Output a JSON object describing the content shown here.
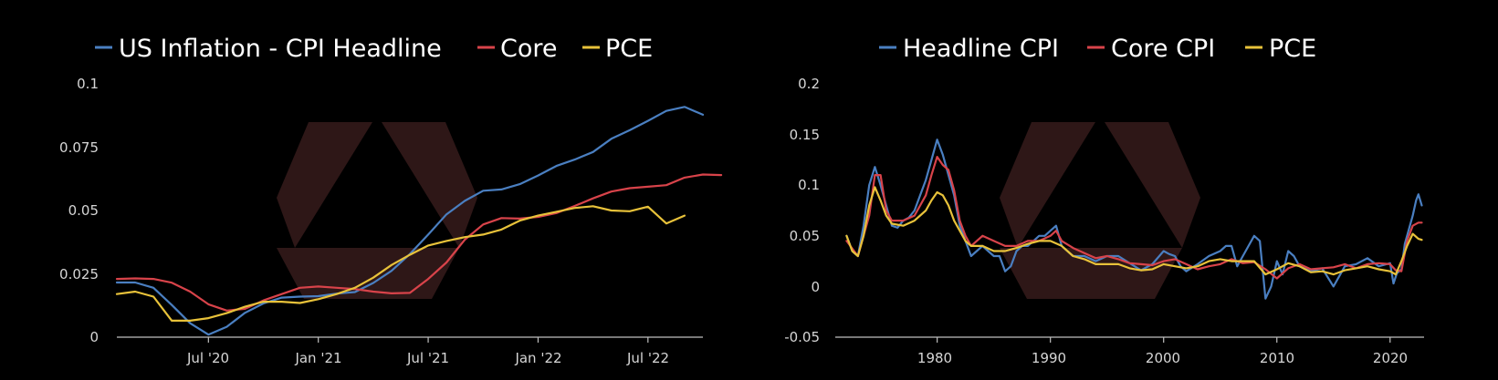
{
  "colors": {
    "background": "#000000",
    "headline": "#4a7fc1",
    "core": "#d8434a",
    "pce": "#e8c23a",
    "axis": "#bfbfbf",
    "text": "#ffffff",
    "watermark": "#2e1717"
  },
  "chart_data": [
    {
      "type": "line",
      "legend": [
        "US Inflation - CPI Headline",
        "Core",
        "PCE"
      ],
      "legend_placement": "top",
      "x_tick_labels": [
        "Jul '20",
        "Jan '21",
        "Jul '21",
        "Jan '22",
        "Jul '22"
      ],
      "y_tick_labels": [
        "0",
        "0.025",
        "0.05",
        "0.075",
        "0.1"
      ],
      "ylim": [
        0,
        0.1
      ],
      "y_ticks": [
        0,
        0.025,
        0.05,
        0.075,
        0.1
      ],
      "xlim": [
        "2020-02",
        "2022-10"
      ],
      "x_ticks": [
        "2020-07",
        "2021-01",
        "2021-07",
        "2022-01",
        "2022-07"
      ],
      "grid": false,
      "series": [
        {
          "name": "US Inflation - CPI Headline",
          "color_key": "headline",
          "x": [
            "2020-02",
            "2020-03",
            "2020-04",
            "2020-05",
            "2020-06",
            "2020-07",
            "2020-08",
            "2020-09",
            "2020-10",
            "2020-11",
            "2020-12",
            "2021-01",
            "2021-02",
            "2021-03",
            "2021-04",
            "2021-05",
            "2021-06",
            "2021-07",
            "2021-08",
            "2021-09",
            "2021-10",
            "2021-11",
            "2021-12",
            "2022-01",
            "2022-02",
            "2022-03",
            "2022-04",
            "2022-05",
            "2022-06",
            "2022-07",
            "2022-08",
            "2022-09",
            "2022-10"
          ],
          "y": [
            0.0216,
            0.0216,
            0.0195,
            0.0127,
            0.0055,
            0.001,
            0.0041,
            0.0096,
            0.0133,
            0.0156,
            0.016,
            0.0162,
            0.0172,
            0.0178,
            0.0214,
            0.0262,
            0.0328,
            0.0405,
            0.0485,
            0.0538,
            0.0578,
            0.0583,
            0.0604,
            0.0638,
            0.0676,
            0.0701,
            0.0731,
            0.0783,
            0.0817,
            0.0854,
            0.0893,
            0.0909,
            0.0878
          ]
        },
        {
          "name": "Core",
          "color_key": "core",
          "x": [
            "2020-02",
            "2020-03",
            "2020-04",
            "2020-05",
            "2020-06",
            "2020-07",
            "2020-08",
            "2020-09",
            "2020-10",
            "2020-11",
            "2020-12",
            "2021-01",
            "2021-02",
            "2021-03",
            "2021-04",
            "2021-05",
            "2021-06",
            "2021-07",
            "2021-08",
            "2021-09",
            "2021-10",
            "2021-11",
            "2021-12",
            "2022-01",
            "2022-02",
            "2022-03",
            "2022-04",
            "2022-05",
            "2022-06",
            "2022-07",
            "2022-08",
            "2022-09",
            "2022-10",
            "2022-11"
          ],
          "y": [
            0.023,
            0.0232,
            0.023,
            0.0215,
            0.018,
            0.013,
            0.0105,
            0.0112,
            0.0145,
            0.017,
            0.0195,
            0.02,
            0.0195,
            0.019,
            0.018,
            0.0173,
            0.0175,
            0.023,
            0.0295,
            0.0385,
            0.0445,
            0.047,
            0.0468,
            0.0475,
            0.049,
            0.0518,
            0.0548,
            0.0575,
            0.0588,
            0.0594,
            0.06,
            0.063,
            0.0642,
            0.064
          ]
        },
        {
          "name": "PCE",
          "color_key": "pce",
          "x": [
            "2020-02",
            "2020-03",
            "2020-04",
            "2020-05",
            "2020-06",
            "2020-07",
            "2020-08",
            "2020-09",
            "2020-10",
            "2020-11",
            "2020-12",
            "2021-01",
            "2021-02",
            "2021-03",
            "2021-04",
            "2021-05",
            "2021-06",
            "2021-07",
            "2021-08",
            "2021-09",
            "2021-10",
            "2021-11",
            "2021-12",
            "2022-01",
            "2022-02",
            "2022-03",
            "2022-04",
            "2022-05",
            "2022-06",
            "2022-07",
            "2022-08",
            "2022-09"
          ],
          "y": [
            0.017,
            0.018,
            0.016,
            0.0065,
            0.0065,
            0.0075,
            0.0095,
            0.012,
            0.014,
            0.014,
            0.0135,
            0.015,
            0.017,
            0.0195,
            0.0235,
            0.0285,
            0.0325,
            0.0362,
            0.038,
            0.0395,
            0.0405,
            0.0425,
            0.046,
            0.048,
            0.0495,
            0.051,
            0.0517,
            0.05,
            0.0497,
            0.0515,
            0.0449,
            0.048
          ]
        }
      ]
    },
    {
      "type": "line",
      "legend": [
        "Headline CPI",
        "Core CPI",
        "PCE"
      ],
      "legend_placement": "top",
      "x_tick_labels": [
        "1980",
        "1990",
        "2000",
        "2010",
        "2020"
      ],
      "y_tick_labels": [
        "-0.05",
        "0",
        "0.05",
        "0.1",
        "0.15",
        "0.2"
      ],
      "ylim": [
        -0.05,
        0.2
      ],
      "y_ticks": [
        -0.05,
        0,
        0.05,
        0.1,
        0.15,
        0.2
      ],
      "xlim": [
        1971,
        2023
      ],
      "x_ticks": [
        1980,
        1990,
        2000,
        2010,
        2020
      ],
      "grid": false,
      "series": [
        {
          "name": "Headline CPI",
          "color_key": "headline",
          "x": [
            1972,
            1972.5,
            1973,
            1973.5,
            1974,
            1974.5,
            1975,
            1975.5,
            1976,
            1976.5,
            1977,
            1977.5,
            1978,
            1978.5,
            1979,
            1979.5,
            1980,
            1980.5,
            1981,
            1981.5,
            1982,
            1982.5,
            1983,
            1983.5,
            1984,
            1984.5,
            1985,
            1985.5,
            1986,
            1986.5,
            1987,
            1987.5,
            1988,
            1988.5,
            1989,
            1989.5,
            1990,
            1990.5,
            1991,
            1991.5,
            1992,
            1993,
            1994,
            1995,
            1996,
            1997,
            1998,
            1999,
            2000,
            2000.5,
            2001,
            2001.5,
            2002,
            2003,
            2004,
            2005,
            2005.5,
            2006,
            2006.5,
            2007,
            2007.5,
            2008,
            2008.5,
            2009,
            2009.5,
            2010,
            2010.5,
            2011,
            2011.5,
            2012,
            2013,
            2014,
            2015,
            2015.5,
            2016,
            2017,
            2018,
            2019,
            2020,
            2020.3,
            2020.6,
            2021,
            2021.3,
            2021.6,
            2022,
            2022.3,
            2022.5,
            2022.8
          ],
          "y": [
            0.05,
            0.035,
            0.03,
            0.06,
            0.1,
            0.118,
            0.1,
            0.08,
            0.06,
            0.058,
            0.065,
            0.068,
            0.075,
            0.09,
            0.105,
            0.125,
            0.145,
            0.13,
            0.11,
            0.09,
            0.06,
            0.045,
            0.03,
            0.035,
            0.04,
            0.035,
            0.03,
            0.03,
            0.015,
            0.02,
            0.035,
            0.04,
            0.04,
            0.045,
            0.05,
            0.05,
            0.055,
            0.06,
            0.04,
            0.035,
            0.03,
            0.03,
            0.025,
            0.03,
            0.03,
            0.023,
            0.016,
            0.022,
            0.035,
            0.032,
            0.03,
            0.02,
            0.015,
            0.022,
            0.03,
            0.035,
            0.04,
            0.04,
            0.02,
            0.03,
            0.04,
            0.05,
            0.045,
            -0.012,
            0.0,
            0.025,
            0.012,
            0.035,
            0.03,
            0.02,
            0.015,
            0.018,
            0.0,
            0.01,
            0.02,
            0.022,
            0.028,
            0.02,
            0.023,
            0.003,
            0.013,
            0.017,
            0.042,
            0.054,
            0.07,
            0.085,
            0.091,
            0.08
          ]
        },
        {
          "name": "Core CPI",
          "color_key": "core",
          "x": [
            1972,
            1973,
            1974,
            1974.5,
            1975,
            1975.5,
            1976,
            1977,
            1978,
            1979,
            1979.5,
            1980,
            1980.5,
            1981,
            1981.5,
            1982,
            1982.5,
            1983,
            1983.5,
            1984,
            1985,
            1986,
            1987,
            1988,
            1989,
            1990,
            1990.5,
            1991,
            1992,
            1993,
            1994,
            1995,
            1996,
            1997,
            1998,
            1999,
            2000,
            2001,
            2002,
            2003,
            2004,
            2005,
            2006,
            2007,
            2008,
            2009,
            2010,
            2011,
            2012,
            2013,
            2014,
            2015,
            2016,
            2017,
            2018,
            2019,
            2020,
            2020.5,
            2021,
            2021.5,
            2022,
            2022.5,
            2022.8
          ],
          "y": [
            0.045,
            0.03,
            0.07,
            0.11,
            0.11,
            0.075,
            0.065,
            0.065,
            0.07,
            0.09,
            0.11,
            0.128,
            0.12,
            0.115,
            0.095,
            0.065,
            0.05,
            0.04,
            0.045,
            0.05,
            0.045,
            0.04,
            0.04,
            0.045,
            0.045,
            0.05,
            0.055,
            0.045,
            0.038,
            0.033,
            0.028,
            0.03,
            0.027,
            0.023,
            0.022,
            0.021,
            0.025,
            0.027,
            0.022,
            0.017,
            0.02,
            0.022,
            0.027,
            0.023,
            0.024,
            0.017,
            0.008,
            0.018,
            0.022,
            0.017,
            0.018,
            0.019,
            0.022,
            0.018,
            0.022,
            0.023,
            0.022,
            0.016,
            0.015,
            0.045,
            0.06,
            0.063,
            0.063
          ]
        },
        {
          "name": "PCE",
          "color_key": "pce",
          "x": [
            1972,
            1972.5,
            1973,
            1973.5,
            1974,
            1974.5,
            1975,
            1975.5,
            1976,
            1977,
            1978,
            1979,
            1979.5,
            1980,
            1980.5,
            1981,
            1981.5,
            1982,
            1982.5,
            1983,
            1984,
            1985,
            1986,
            1987,
            1988,
            1989,
            1990,
            1991,
            1992,
            1993,
            1994,
            1995,
            1996,
            1997,
            1998,
            1999,
            2000,
            2001,
            2002,
            2003,
            2004,
            2005,
            2006,
            2007,
            2008,
            2009,
            2010,
            2011,
            2012,
            2013,
            2014,
            2015,
            2016,
            2017,
            2018,
            2019,
            2020,
            2020.5,
            2021,
            2021.5,
            2022,
            2022.5,
            2022.8
          ],
          "y": [
            0.05,
            0.035,
            0.03,
            0.05,
            0.08,
            0.098,
            0.085,
            0.07,
            0.062,
            0.06,
            0.065,
            0.075,
            0.085,
            0.093,
            0.09,
            0.08,
            0.065,
            0.055,
            0.045,
            0.04,
            0.04,
            0.035,
            0.035,
            0.038,
            0.042,
            0.045,
            0.045,
            0.04,
            0.03,
            0.027,
            0.022,
            0.022,
            0.022,
            0.018,
            0.016,
            0.017,
            0.022,
            0.02,
            0.018,
            0.02,
            0.025,
            0.027,
            0.025,
            0.025,
            0.025,
            0.012,
            0.017,
            0.023,
            0.02,
            0.014,
            0.015,
            0.012,
            0.016,
            0.018,
            0.02,
            0.017,
            0.015,
            0.012,
            0.025,
            0.04,
            0.052,
            0.047,
            0.046
          ]
        }
      ]
    }
  ]
}
